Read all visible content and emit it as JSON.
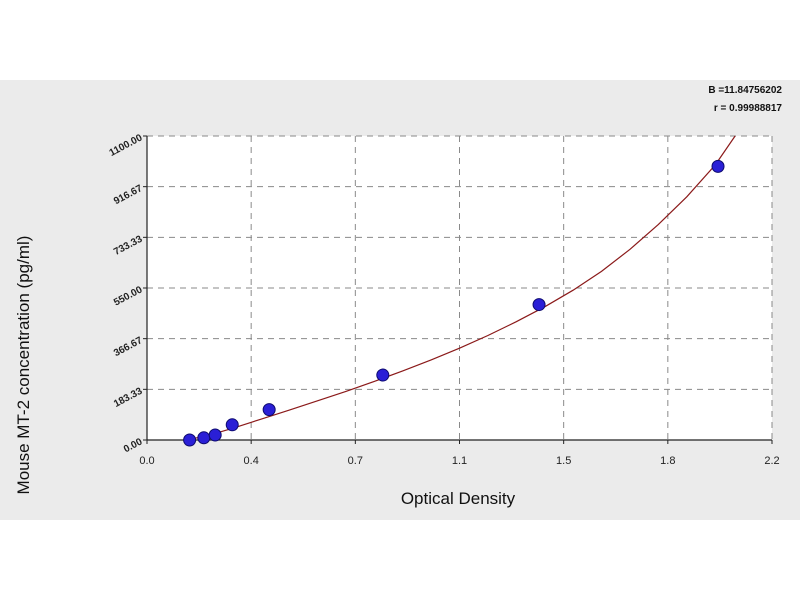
{
  "chart_data": {
    "type": "scatter",
    "title": "",
    "xlabel": "Optical Density",
    "ylabel": "Mouse MT-2 concentration (pg/ml)",
    "xlim": [
      0.0,
      2.2
    ],
    "ylim": [
      0,
      1100
    ],
    "x_tick_labels": [
      "0.0",
      "0.4",
      "0.7",
      "1.1",
      "1.5",
      "1.8",
      "2.2"
    ],
    "y_tick_labels": [
      "0.00",
      "183.33",
      "366.67",
      "550.00",
      "733.33",
      "916.67",
      "1100.00"
    ],
    "grid": true,
    "points": {
      "x": [
        0.15,
        0.2,
        0.24,
        0.3,
        0.43,
        0.83,
        1.38,
        2.01
      ],
      "y": [
        0,
        8,
        18,
        55,
        110,
        235,
        490,
        990
      ]
    },
    "fit_curve": {
      "x": [
        0.13,
        0.2,
        0.3,
        0.4,
        0.5,
        0.6,
        0.7,
        0.8,
        0.9,
        1.0,
        1.1,
        1.2,
        1.3,
        1.4,
        1.5,
        1.6,
        1.7,
        1.8,
        1.9,
        2.0,
        2.07
      ],
      "y": [
        0,
        12,
        42,
        75,
        108,
        142,
        176,
        212,
        250,
        290,
        332,
        378,
        428,
        482,
        542,
        610,
        690,
        780,
        880,
        995,
        1100
      ]
    },
    "colors": {
      "point": "#2a1fd6",
      "point_edge": "#0d0a6e",
      "curve": "#8b1a1a",
      "plot_bg": "#ffffff",
      "figure_bg": "#ebebeb"
    },
    "annotations": {
      "b_line": "B =11.84756202",
      "r_line": "r = 0.99988817"
    }
  }
}
